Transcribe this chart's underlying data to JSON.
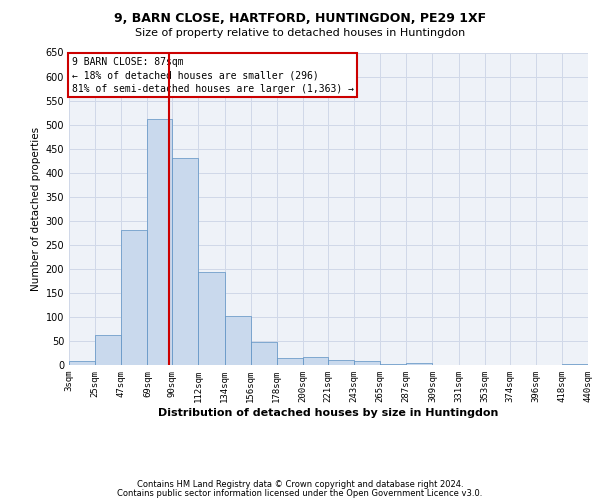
{
  "title1": "9, BARN CLOSE, HARTFORD, HUNTINGDON, PE29 1XF",
  "title2": "Size of property relative to detached houses in Huntingdon",
  "xlabel": "Distribution of detached houses by size in Huntingdon",
  "ylabel": "Number of detached properties",
  "footer1": "Contains HM Land Registry data © Crown copyright and database right 2024.",
  "footer2": "Contains public sector information licensed under the Open Government Licence v3.0.",
  "annotation_line1": "9 BARN CLOSE: 87sqm",
  "annotation_line2": "← 18% of detached houses are smaller (296)",
  "annotation_line3": "81% of semi-detached houses are larger (1,363) →",
  "bar_color": "#c9d9ed",
  "bar_edge_color": "#5a8fc2",
  "red_line_x": 87,
  "bins": [
    3,
    25,
    47,
    69,
    90,
    112,
    134,
    156,
    178,
    200,
    221,
    243,
    265,
    287,
    309,
    331,
    353,
    374,
    396,
    418,
    440
  ],
  "counts": [
    8,
    63,
    281,
    512,
    431,
    193,
    101,
    47,
    15,
    16,
    10,
    8,
    3,
    4,
    1,
    1,
    0,
    0,
    0,
    2
  ],
  "ylim": [
    0,
    650
  ],
  "xlim_min": 3,
  "xlim_max": 440,
  "tick_labels": [
    "3sqm",
    "25sqm",
    "47sqm",
    "69sqm",
    "90sqm",
    "112sqm",
    "134sqm",
    "156sqm",
    "178sqm",
    "200sqm",
    "221sqm",
    "243sqm",
    "265sqm",
    "287sqm",
    "309sqm",
    "331sqm",
    "353sqm",
    "374sqm",
    "396sqm",
    "418sqm",
    "440sqm"
  ],
  "annotation_box_color": "#ffffff",
  "annotation_box_edge_color": "#cc0000",
  "grid_color": "#d0d8e8",
  "background_color": "#eef2f8",
  "title1_fontsize": 9,
  "title2_fontsize": 8,
  "ylabel_fontsize": 7.5,
  "xlabel_fontsize": 8,
  "tick_fontsize": 6.5,
  "ytick_fontsize": 7,
  "ann_fontsize": 7,
  "footer_fontsize": 6
}
